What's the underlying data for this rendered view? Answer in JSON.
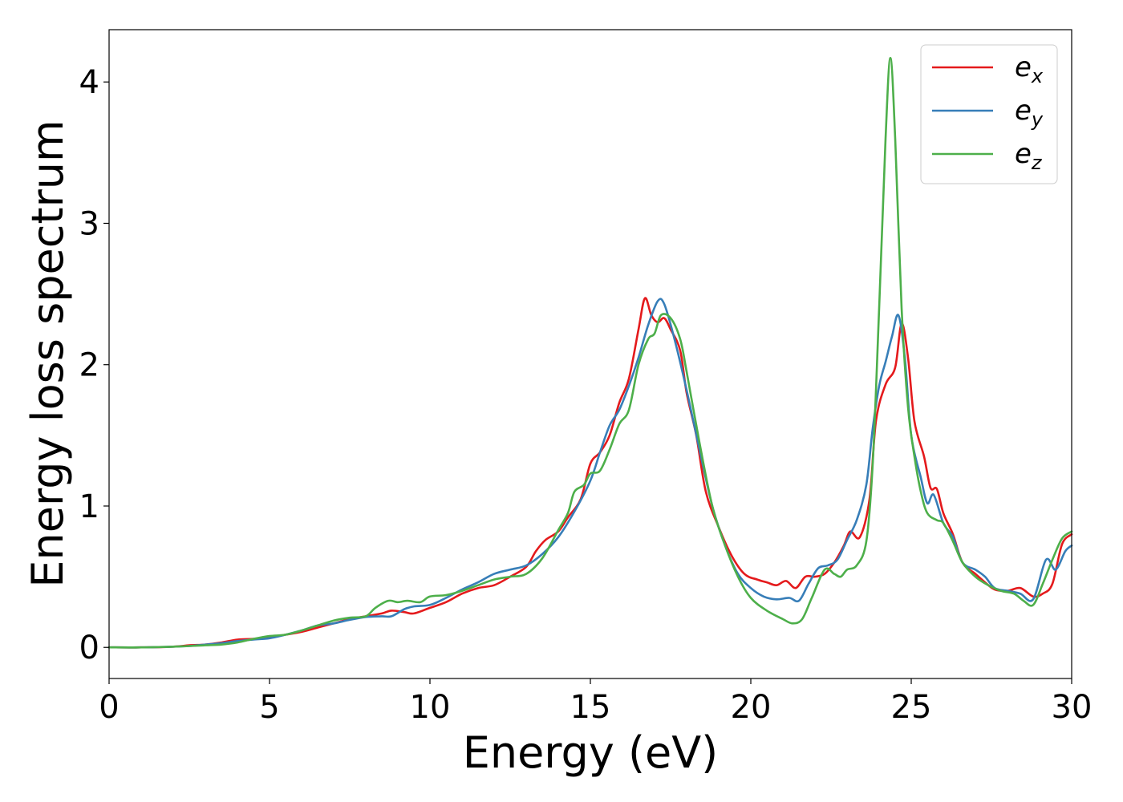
{
  "chart_data": {
    "type": "line",
    "title": "",
    "xlabel": "Energy (eV)",
    "ylabel": "Energy loss spectrum",
    "xlim": [
      0,
      30
    ],
    "ylim": [
      -0.22,
      4.37
    ],
    "xticks": [
      "0",
      "5",
      "10",
      "15",
      "20",
      "25",
      "30"
    ],
    "yticks": [
      "0",
      "1",
      "2",
      "3",
      "4"
    ],
    "grid": false,
    "legend_position": "top-right",
    "series": [
      {
        "name": "ex",
        "name_base": "e",
        "name_sub": "x",
        "color": "#e41a1c",
        "points": [
          [
            0,
            0
          ],
          [
            1,
            0
          ],
          [
            2,
            0.005
          ],
          [
            2.5,
            0.015
          ],
          [
            3,
            0.02
          ],
          [
            3.5,
            0.035
          ],
          [
            4,
            0.055
          ],
          [
            4.5,
            0.06
          ],
          [
            5,
            0.07
          ],
          [
            5.5,
            0.09
          ],
          [
            6,
            0.11
          ],
          [
            6.5,
            0.14
          ],
          [
            7,
            0.17
          ],
          [
            7.5,
            0.2
          ],
          [
            8,
            0.22
          ],
          [
            8.5,
            0.24
          ],
          [
            8.8,
            0.26
          ],
          [
            9.2,
            0.25
          ],
          [
            9.5,
            0.24
          ],
          [
            10,
            0.28
          ],
          [
            10.5,
            0.32
          ],
          [
            11,
            0.38
          ],
          [
            11.5,
            0.42
          ],
          [
            12,
            0.44
          ],
          [
            12.5,
            0.5
          ],
          [
            13,
            0.57
          ],
          [
            13.3,
            0.68
          ],
          [
            13.6,
            0.76
          ],
          [
            14,
            0.82
          ],
          [
            14.3,
            0.92
          ],
          [
            14.7,
            1.05
          ],
          [
            15,
            1.3
          ],
          [
            15.3,
            1.38
          ],
          [
            15.6,
            1.5
          ],
          [
            15.9,
            1.73
          ],
          [
            16.2,
            1.9
          ],
          [
            16.5,
            2.25
          ],
          [
            16.7,
            2.47
          ],
          [
            16.9,
            2.35
          ],
          [
            17.1,
            2.3
          ],
          [
            17.3,
            2.33
          ],
          [
            17.5,
            2.25
          ],
          [
            17.8,
            2.1
          ],
          [
            18,
            1.8
          ],
          [
            18.3,
            1.5
          ],
          [
            18.6,
            1.1
          ],
          [
            19,
            0.85
          ],
          [
            19.4,
            0.65
          ],
          [
            19.8,
            0.52
          ],
          [
            20.2,
            0.48
          ],
          [
            20.5,
            0.46
          ],
          [
            20.8,
            0.44
          ],
          [
            21.1,
            0.47
          ],
          [
            21.4,
            0.42
          ],
          [
            21.7,
            0.5
          ],
          [
            22,
            0.5
          ],
          [
            22.3,
            0.52
          ],
          [
            22.6,
            0.6
          ],
          [
            22.9,
            0.72
          ],
          [
            23.1,
            0.82
          ],
          [
            23.4,
            0.78
          ],
          [
            23.7,
            1.05
          ],
          [
            23.9,
            1.6
          ],
          [
            24.2,
            1.86
          ],
          [
            24.5,
            1.98
          ],
          [
            24.7,
            2.29
          ],
          [
            24.9,
            2.05
          ],
          [
            25.1,
            1.6
          ],
          [
            25.4,
            1.35
          ],
          [
            25.6,
            1.13
          ],
          [
            25.8,
            1.12
          ],
          [
            26,
            0.95
          ],
          [
            26.3,
            0.8
          ],
          [
            26.6,
            0.6
          ],
          [
            27,
            0.52
          ],
          [
            27.3,
            0.46
          ],
          [
            27.6,
            0.41
          ],
          [
            28,
            0.4
          ],
          [
            28.4,
            0.42
          ],
          [
            28.8,
            0.36
          ],
          [
            29.1,
            0.38
          ],
          [
            29.4,
            0.45
          ],
          [
            29.7,
            0.73
          ],
          [
            30,
            0.8
          ]
        ]
      },
      {
        "name": "ey",
        "name_base": "e",
        "name_sub": "y",
        "color": "#377eb8",
        "points": [
          [
            0,
            0
          ],
          [
            1,
            0
          ],
          [
            2,
            0.005
          ],
          [
            2.5,
            0.01
          ],
          [
            3,
            0.02
          ],
          [
            3.5,
            0.03
          ],
          [
            4,
            0.045
          ],
          [
            4.5,
            0.055
          ],
          [
            5,
            0.065
          ],
          [
            5.5,
            0.09
          ],
          [
            6,
            0.12
          ],
          [
            6.5,
            0.155
          ],
          [
            7,
            0.17
          ],
          [
            7.5,
            0.195
          ],
          [
            8,
            0.215
          ],
          [
            8.5,
            0.22
          ],
          [
            8.8,
            0.22
          ],
          [
            9.2,
            0.27
          ],
          [
            9.5,
            0.29
          ],
          [
            10,
            0.3
          ],
          [
            10.5,
            0.35
          ],
          [
            11,
            0.41
          ],
          [
            11.5,
            0.46
          ],
          [
            12,
            0.52
          ],
          [
            12.5,
            0.55
          ],
          [
            13,
            0.58
          ],
          [
            13.5,
            0.66
          ],
          [
            14,
            0.78
          ],
          [
            14.5,
            0.96
          ],
          [
            15,
            1.18
          ],
          [
            15.3,
            1.38
          ],
          [
            15.6,
            1.57
          ],
          [
            15.9,
            1.68
          ],
          [
            16.2,
            1.85
          ],
          [
            16.5,
            2.05
          ],
          [
            16.8,
            2.28
          ],
          [
            17.1,
            2.45
          ],
          [
            17.3,
            2.43
          ],
          [
            17.6,
            2.2
          ],
          [
            18,
            1.82
          ],
          [
            18.4,
            1.4
          ],
          [
            18.8,
            1.0
          ],
          [
            19.2,
            0.72
          ],
          [
            19.6,
            0.52
          ],
          [
            20,
            0.42
          ],
          [
            20.4,
            0.36
          ],
          [
            20.8,
            0.34
          ],
          [
            21.2,
            0.35
          ],
          [
            21.5,
            0.33
          ],
          [
            21.8,
            0.45
          ],
          [
            22.1,
            0.56
          ],
          [
            22.4,
            0.58
          ],
          [
            22.7,
            0.62
          ],
          [
            23,
            0.76
          ],
          [
            23.3,
            0.9
          ],
          [
            23.6,
            1.15
          ],
          [
            23.8,
            1.55
          ],
          [
            24,
            1.85
          ],
          [
            24.2,
            2.02
          ],
          [
            24.4,
            2.2
          ],
          [
            24.6,
            2.35
          ],
          [
            24.8,
            2.05
          ],
          [
            25,
            1.5
          ],
          [
            25.3,
            1.2
          ],
          [
            25.5,
            1.02
          ],
          [
            25.7,
            1.08
          ],
          [
            26,
            0.88
          ],
          [
            26.3,
            0.78
          ],
          [
            26.6,
            0.6
          ],
          [
            27,
            0.55
          ],
          [
            27.3,
            0.5
          ],
          [
            27.6,
            0.42
          ],
          [
            28,
            0.4
          ],
          [
            28.4,
            0.38
          ],
          [
            28.8,
            0.34
          ],
          [
            29.2,
            0.62
          ],
          [
            29.5,
            0.55
          ],
          [
            29.8,
            0.68
          ],
          [
            30,
            0.72
          ]
        ]
      },
      {
        "name": "ez",
        "name_base": "e",
        "name_sub": "z",
        "color": "#4daf4a",
        "points": [
          [
            0,
            0
          ],
          [
            1,
            0
          ],
          [
            2,
            0.005
          ],
          [
            2.5,
            0.01
          ],
          [
            3,
            0.015
          ],
          [
            3.5,
            0.02
          ],
          [
            4,
            0.035
          ],
          [
            4.5,
            0.06
          ],
          [
            5,
            0.08
          ],
          [
            5.5,
            0.09
          ],
          [
            6,
            0.12
          ],
          [
            6.5,
            0.155
          ],
          [
            7,
            0.19
          ],
          [
            7.5,
            0.21
          ],
          [
            8,
            0.22
          ],
          [
            8.3,
            0.28
          ],
          [
            8.7,
            0.33
          ],
          [
            9,
            0.32
          ],
          [
            9.3,
            0.33
          ],
          [
            9.7,
            0.32
          ],
          [
            10,
            0.36
          ],
          [
            10.5,
            0.37
          ],
          [
            11,
            0.4
          ],
          [
            11.5,
            0.44
          ],
          [
            12,
            0.48
          ],
          [
            12.5,
            0.5
          ],
          [
            13,
            0.52
          ],
          [
            13.5,
            0.63
          ],
          [
            14,
            0.83
          ],
          [
            14.3,
            0.95
          ],
          [
            14.5,
            1.1
          ],
          [
            14.8,
            1.15
          ],
          [
            15,
            1.23
          ],
          [
            15.3,
            1.25
          ],
          [
            15.6,
            1.4
          ],
          [
            15.9,
            1.58
          ],
          [
            16.2,
            1.68
          ],
          [
            16.5,
            2.0
          ],
          [
            16.8,
            2.18
          ],
          [
            17,
            2.22
          ],
          [
            17.2,
            2.35
          ],
          [
            17.5,
            2.33
          ],
          [
            17.8,
            2.18
          ],
          [
            18,
            1.95
          ],
          [
            18.4,
            1.45
          ],
          [
            18.8,
            1.0
          ],
          [
            19.2,
            0.72
          ],
          [
            19.6,
            0.5
          ],
          [
            20,
            0.35
          ],
          [
            20.5,
            0.26
          ],
          [
            21,
            0.2
          ],
          [
            21.3,
            0.17
          ],
          [
            21.6,
            0.2
          ],
          [
            21.9,
            0.35
          ],
          [
            22.3,
            0.55
          ],
          [
            22.6,
            0.52
          ],
          [
            22.8,
            0.5
          ],
          [
            23,
            0.55
          ],
          [
            23.3,
            0.58
          ],
          [
            23.6,
            0.75
          ],
          [
            23.8,
            1.3
          ],
          [
            24,
            2.4
          ],
          [
            24.2,
            3.6
          ],
          [
            24.35,
            4.17
          ],
          [
            24.5,
            3.6
          ],
          [
            24.7,
            2.4
          ],
          [
            24.9,
            1.7
          ],
          [
            25.1,
            1.35
          ],
          [
            25.3,
            1.1
          ],
          [
            25.5,
            0.95
          ],
          [
            25.8,
            0.9
          ],
          [
            26,
            0.88
          ],
          [
            26.3,
            0.75
          ],
          [
            26.6,
            0.6
          ],
          [
            27,
            0.5
          ],
          [
            27.4,
            0.44
          ],
          [
            27.8,
            0.4
          ],
          [
            28.2,
            0.38
          ],
          [
            28.5,
            0.33
          ],
          [
            28.8,
            0.3
          ],
          [
            29.1,
            0.45
          ],
          [
            29.4,
            0.62
          ],
          [
            29.7,
            0.77
          ],
          [
            30,
            0.82
          ]
        ]
      }
    ]
  }
}
